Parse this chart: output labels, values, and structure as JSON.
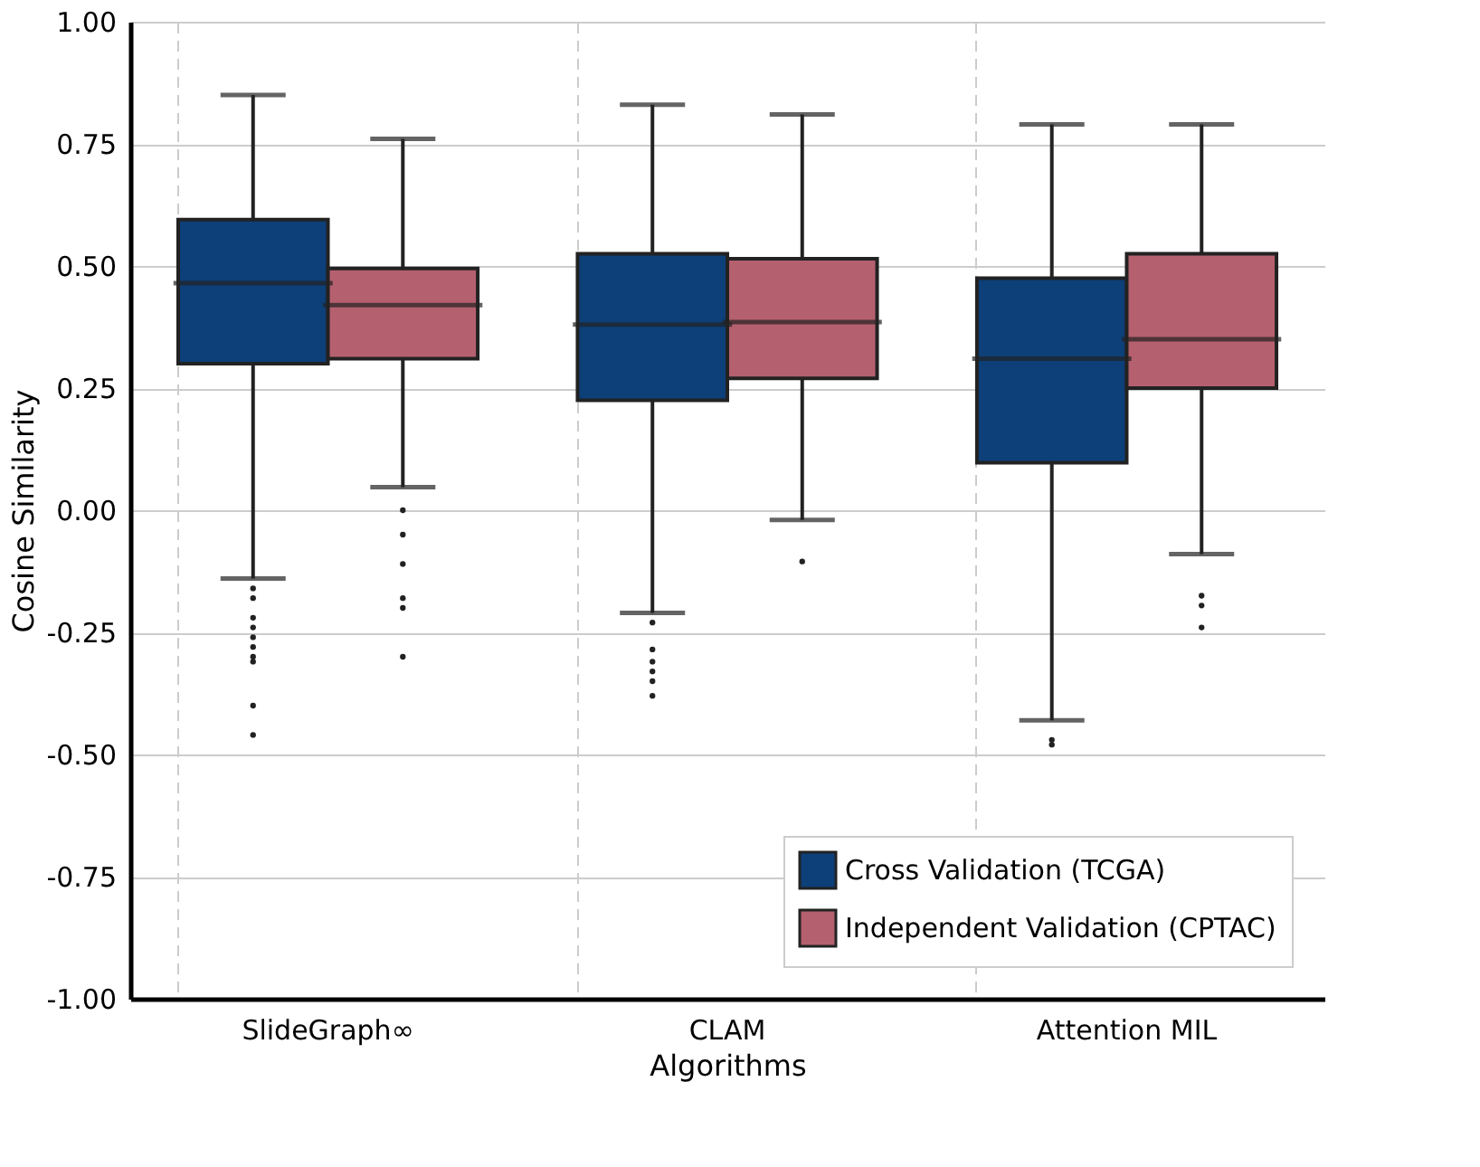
{
  "chart_data": {
    "type": "box",
    "categories": [
      "SlideGraph∞",
      "CLAM",
      "Attention MIL"
    ],
    "xlabel": "Algorithms",
    "ylabel": "Cosine Similarity",
    "ylim": [
      -1.0,
      1.0
    ],
    "yticks": [
      {
        "value": -1.0,
        "label": "-1.00"
      },
      {
        "value": -0.75,
        "label": "-0.75"
      },
      {
        "value": -0.5,
        "label": "-0.50"
      },
      {
        "value": -0.25,
        "label": "-0.25"
      },
      {
        "value": 0,
        "label": "0.00"
      },
      {
        "value": 0.25,
        "label": "0.25"
      },
      {
        "value": 0.5,
        "label": "0.50"
      },
      {
        "value": 0.75,
        "label": "0.75"
      },
      {
        "value": 1.0,
        "label": "1.00"
      }
    ],
    "grid": true,
    "legend": "bottom right",
    "series": [
      {
        "name": "Cross Validation (TCGA)",
        "color": "#0d3f78",
        "boxes": [
          {
            "low": -0.14,
            "q1": 0.3,
            "median": 0.465,
            "q3": 0.595,
            "high": 0.85,
            "outliers": [
              -0.16,
              -0.18,
              -0.22,
              -0.24,
              -0.26,
              -0.28,
              -0.3,
              -0.31,
              -0.4,
              -0.46
            ]
          },
          {
            "low": -0.21,
            "q1": 0.225,
            "median": 0.38,
            "q3": 0.525,
            "high": 0.83,
            "outliers": [
              -0.23,
              -0.285,
              -0.31,
              -0.33,
              -0.35,
              -0.38
            ]
          },
          {
            "low": -0.43,
            "q1": 0.097,
            "median": 0.31,
            "q3": 0.475,
            "high": 0.79,
            "outliers": [
              -0.47,
              -0.48
            ]
          }
        ]
      },
      {
        "name": "Independent Validation (CPTAC)",
        "color": "#b5606f",
        "boxes": [
          {
            "low": 0.047,
            "q1": 0.31,
            "median": 0.42,
            "q3": 0.495,
            "high": 0.76,
            "outliers": [
              0.0,
              -0.05,
              -0.11,
              -0.18,
              -0.2,
              -0.3
            ]
          },
          {
            "low": -0.02,
            "q1": 0.27,
            "median": 0.385,
            "q3": 0.515,
            "high": 0.81,
            "outliers": [
              -0.105
            ]
          },
          {
            "low": -0.09,
            "q1": 0.25,
            "median": 0.35,
            "q3": 0.525,
            "high": 0.79,
            "outliers": [
              -0.175,
              -0.195,
              -0.24
            ]
          }
        ]
      }
    ]
  }
}
